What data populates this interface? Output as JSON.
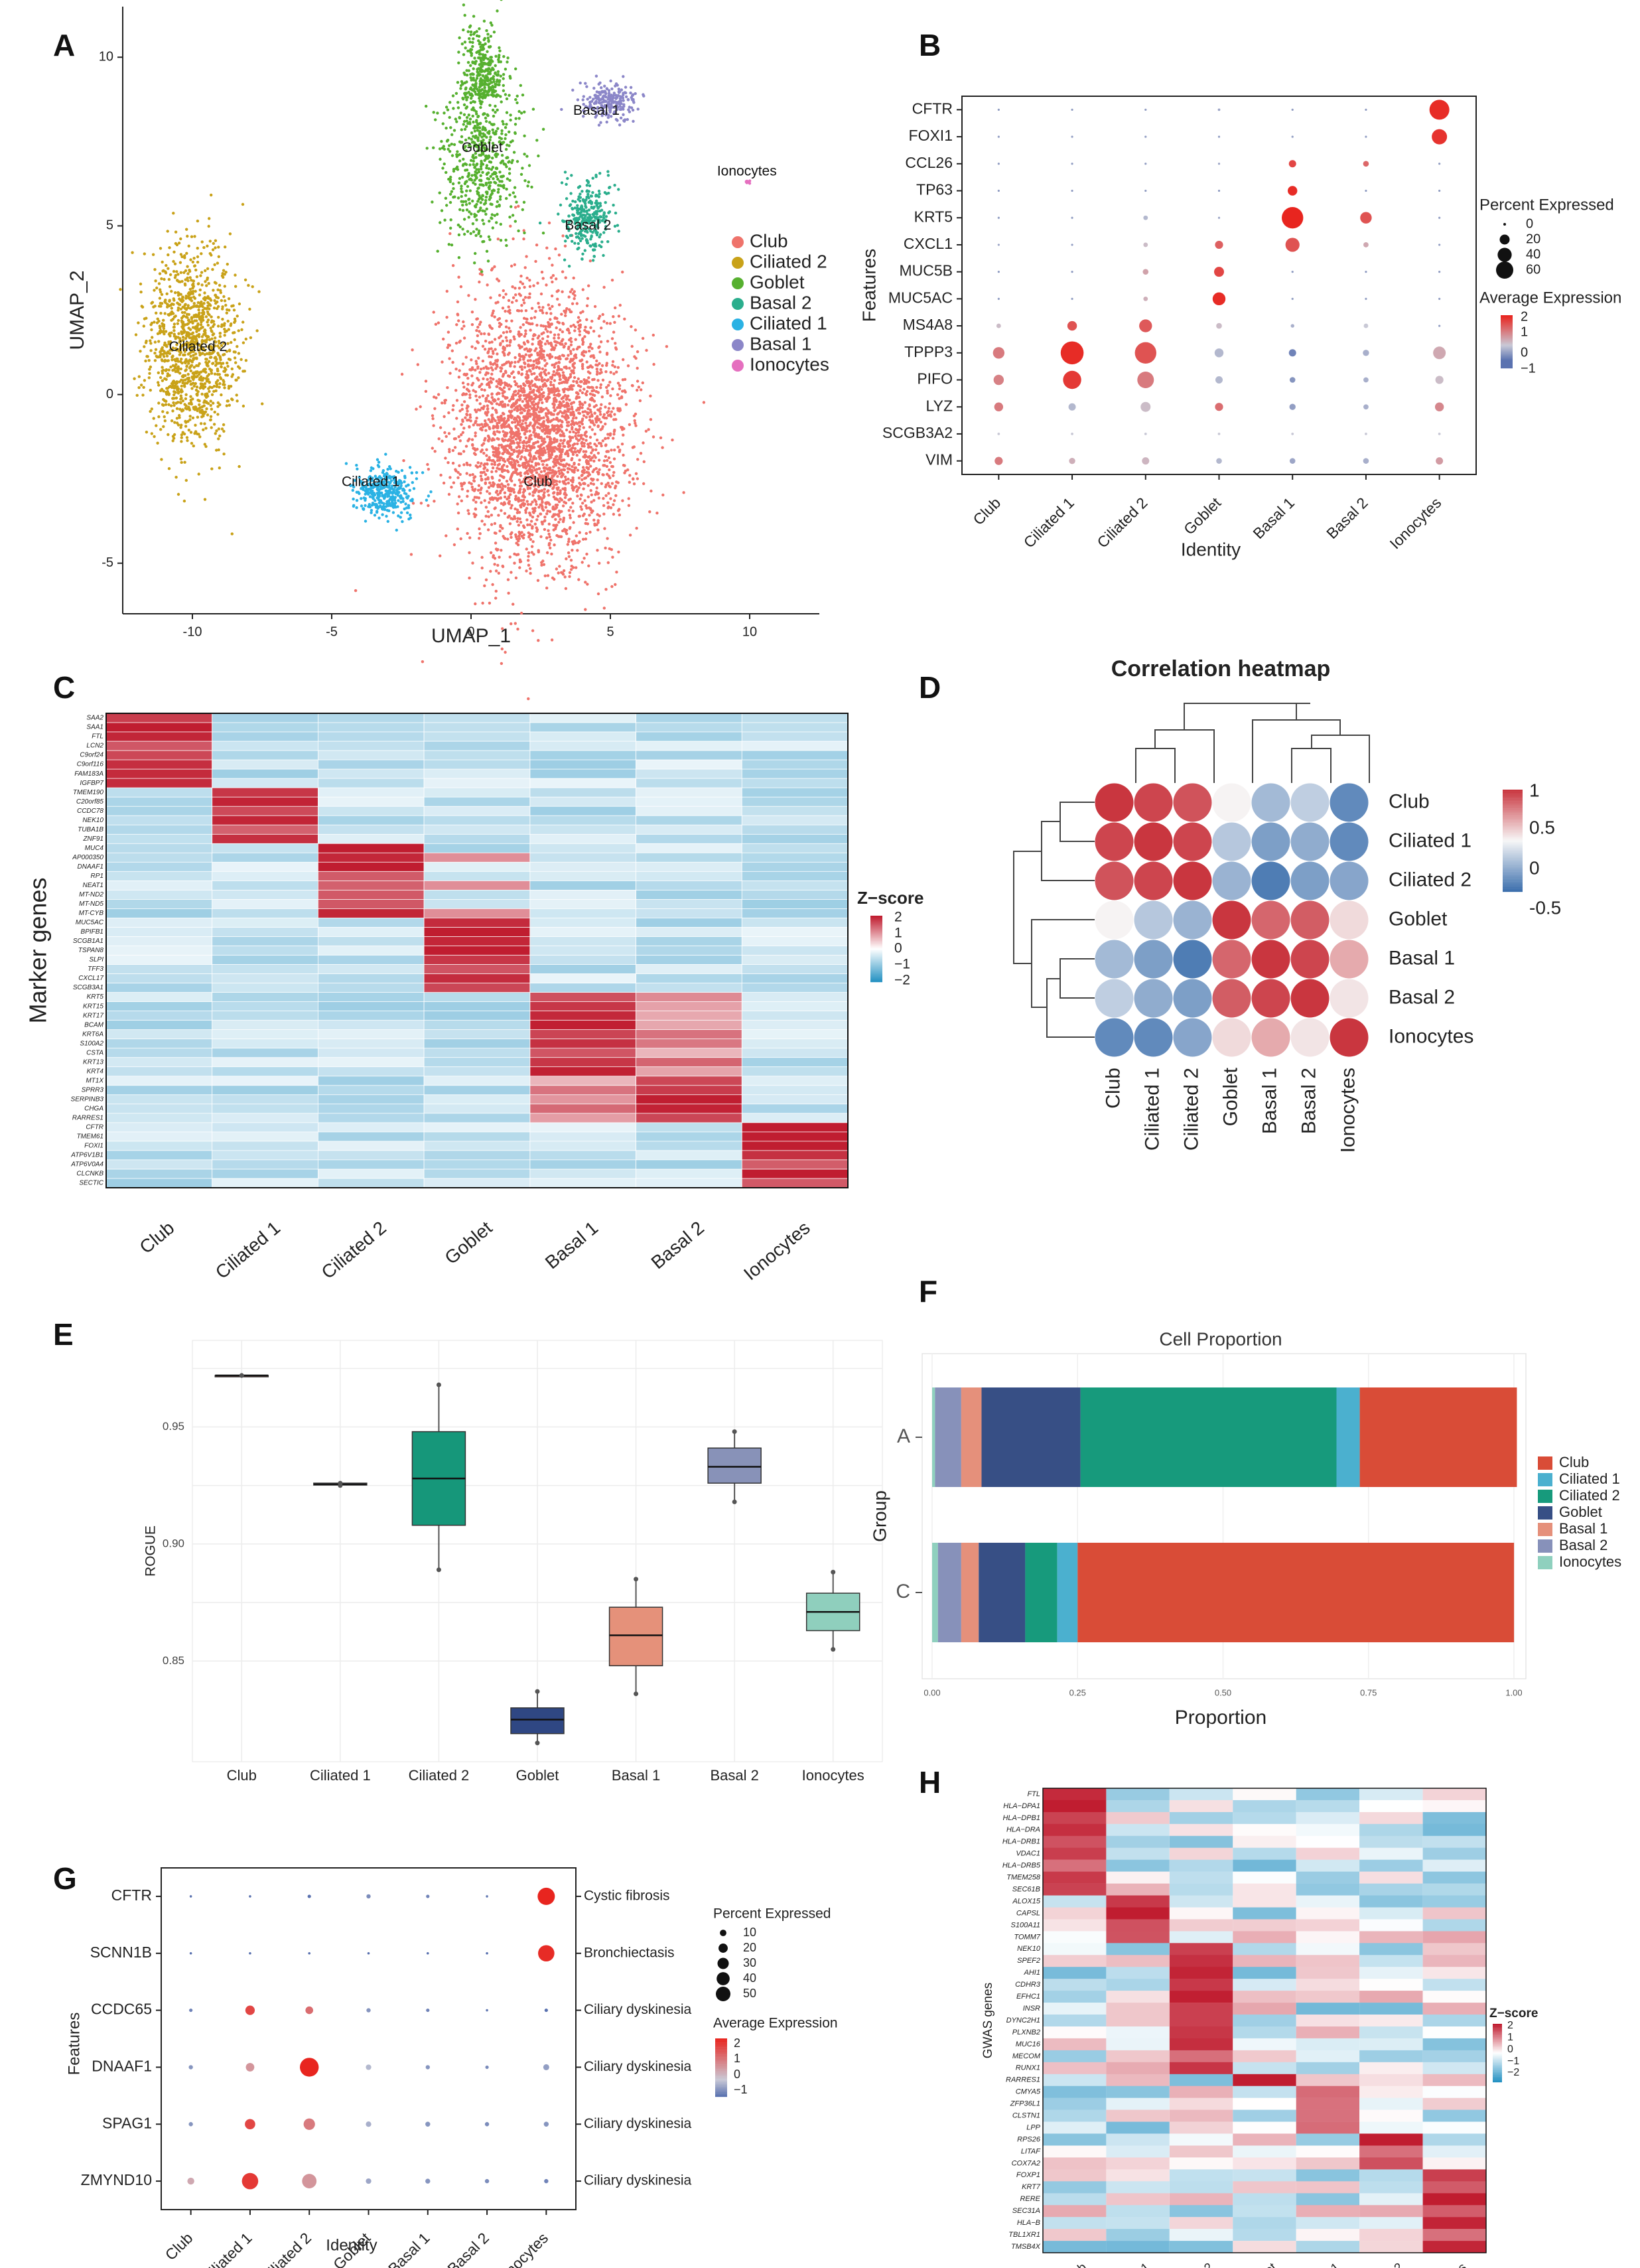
{
  "figure": {
    "panel_letters": [
      "A",
      "B",
      "C",
      "D",
      "E",
      "F",
      "G",
      "H"
    ],
    "celltypes": [
      "Club",
      "Ciliated 1",
      "Ciliated 2",
      "Goblet",
      "Basal 1",
      "Basal 2",
      "Ionocytes"
    ]
  },
  "colors": {
    "club": "#ef736b",
    "ciliated2": "#c9a219",
    "goblet": "#56b02f",
    "basal2": "#2bae8d",
    "ciliated1": "#2ab2e4",
    "basal1": "#8b86c8",
    "ionocytes": "#e56fbf",
    "heat_high": "#c01d30",
    "heat_low": "#2692c3",
    "corr_high": "#c9363f",
    "corr_low": "#3c6fad",
    "dot_high": "#e8251f",
    "dot_low": "#5a72b0"
  },
  "chart_data": [
    {
      "panel": "A",
      "type": "scatter",
      "xlabel": "UMAP_1",
      "ylabel": "UMAP_2",
      "xlim": [
        -12.5,
        12.5
      ],
      "ylim": [
        -6.5,
        11.5
      ],
      "xticks": [
        "-10",
        "-5",
        "0",
        "5",
        "10"
      ],
      "yticks": [
        "-5",
        "0",
        "5",
        "10"
      ],
      "clusters": [
        {
          "name": "Club",
          "cx": 2.4,
          "cy": -1.0,
          "rx": 3.4,
          "ry": 4.4,
          "n": 3200,
          "label_pos": [
            2.4,
            -2.6
          ]
        },
        {
          "name": "Ciliated 2",
          "cx": -10.0,
          "cy": 1.4,
          "rx": 1.8,
          "ry": 3.2,
          "n": 1200,
          "label_pos": [
            -9.8,
            1.4
          ]
        },
        {
          "name": "Goblet",
          "cx": 0.4,
          "cy": 7.0,
          "rx": 1.6,
          "ry": 2.6,
          "n": 900,
          "label_pos": [
            0.4,
            7.3
          ]
        },
        {
          "name": "Basal 2",
          "cx": 4.2,
          "cy": 5.3,
          "rx": 0.9,
          "ry": 1.2,
          "n": 300,
          "label_pos": [
            4.2,
            5.0
          ]
        },
        {
          "name": "Ciliated 1",
          "cx": -3.1,
          "cy": -2.9,
          "rx": 1.2,
          "ry": 0.8,
          "n": 350,
          "label_pos": [
            -3.6,
            -2.6
          ]
        },
        {
          "name": "Basal 1",
          "cx": 4.9,
          "cy": 8.7,
          "rx": 1.1,
          "ry": 0.6,
          "n": 220,
          "label_pos": [
            4.5,
            8.4
          ]
        },
        {
          "name": "Ionocytes",
          "cx": 9.9,
          "cy": 6.3,
          "rx": 0.15,
          "ry": 0.08,
          "n": 8,
          "label_pos": [
            9.9,
            6.6
          ]
        }
      ],
      "legend": [
        "Club",
        "Ciliated 2",
        "Goblet",
        "Basal 2",
        "Ciliated 1",
        "Basal 1",
        "Ionocytes"
      ]
    },
    {
      "panel": "B",
      "type": "dot",
      "xlabel": "Identity",
      "ylabel": "Features",
      "features": [
        "CFTR",
        "FOXI1",
        "CCL26",
        "TP63",
        "KRT5",
        "CXCL1",
        "MUC5B",
        "MUC5AC",
        "MS4A8",
        "TPPP3",
        "PIFO",
        "LYZ",
        "SCGB3A2",
        "VIM"
      ],
      "groups": [
        "Club",
        "Ciliated 1",
        "Ciliated 2",
        "Goblet",
        "Basal 1",
        "Basal 2",
        "Ionocytes"
      ],
      "pct": [
        [
          0,
          0,
          0,
          1,
          0,
          0,
          60
        ],
        [
          0,
          0,
          0,
          0,
          0,
          0,
          35
        ],
        [
          0,
          0,
          0,
          0,
          8,
          5,
          0
        ],
        [
          0,
          0,
          0,
          0,
          14,
          0,
          0
        ],
        [
          0,
          0,
          3,
          0,
          70,
          20,
          0
        ],
        [
          0,
          0,
          3,
          10,
          30,
          4,
          0
        ],
        [
          0,
          0,
          5,
          15,
          0,
          0,
          0
        ],
        [
          0,
          0,
          3,
          25,
          0,
          0,
          0
        ],
        [
          3,
          14,
          25,
          5,
          2,
          3,
          0
        ],
        [
          20,
          80,
          70,
          12,
          8,
          6,
          24
        ],
        [
          16,
          50,
          42,
          8,
          5,
          4,
          10
        ],
        [
          12,
          8,
          15,
          10,
          6,
          4,
          12
        ],
        [
          1,
          1,
          1,
          1,
          1,
          1,
          1
        ],
        [
          10,
          6,
          8,
          5,
          5,
          5,
          8
        ]
      ],
      "avg": [
        [
          -0.5,
          -0.5,
          -0.5,
          -0.4,
          -0.5,
          -0.5,
          2.4
        ],
        [
          -0.5,
          -0.5,
          -0.5,
          -0.5,
          -0.5,
          -0.5,
          2.3
        ],
        [
          -0.5,
          -0.5,
          -0.5,
          -0.4,
          2.0,
          1.5,
          -0.5
        ],
        [
          -0.5,
          -0.5,
          -0.5,
          -0.5,
          2.4,
          -0.5,
          -0.5
        ],
        [
          -0.5,
          -0.5,
          -0.2,
          -0.4,
          2.5,
          1.8,
          -0.5
        ],
        [
          -0.4,
          -0.5,
          0.2,
          1.6,
          1.8,
          0.5,
          -0.5
        ],
        [
          -0.5,
          -0.5,
          0.6,
          2.0,
          -0.5,
          -0.5,
          -0.5
        ],
        [
          -0.5,
          -0.5,
          0.4,
          2.4,
          -0.5,
          -0.5,
          -0.5
        ],
        [
          0.2,
          1.8,
          1.7,
          0.2,
          -0.3,
          0,
          -0.5
        ],
        [
          1.2,
          2.4,
          1.8,
          -0.2,
          -0.8,
          -0.3,
          0.5
        ],
        [
          1.1,
          2.2,
          1.2,
          -0.2,
          -0.6,
          -0.3,
          0.2
        ],
        [
          1.2,
          -0.2,
          0.2,
          1.4,
          -0.5,
          -0.3,
          1.0
        ],
        [
          0,
          0,
          0,
          0,
          0,
          0,
          0
        ],
        [
          1.2,
          0.4,
          0.3,
          -0.2,
          -0.4,
          -0.3,
          0.7
        ]
      ],
      "size_legend_title": "Percent Expressed",
      "size_legend": [
        "0",
        "20",
        "40",
        "60"
      ],
      "color_legend_title": "Average Expression",
      "color_legend": [
        "2",
        "1",
        "0",
        "−1"
      ]
    },
    {
      "panel": "C",
      "type": "heatmap",
      "ylabel": "Marker genes",
      "groups": [
        "Club",
        "Ciliated 1",
        "Ciliated 2",
        "Goblet",
        "Basal 1",
        "Basal 2",
        "Ionocytes"
      ],
      "genes": [
        "SAA2",
        "SAA1",
        "FTL",
        "LCN2",
        "C9orf24",
        "C9orf116",
        "FAM183A",
        "IGFBP7",
        "TMEM190",
        "C20orf85",
        "CCDC78",
        "NEK10",
        "TUBA1B",
        "ZNF91",
        "MUC4",
        "AP000350",
        "DNAAF1",
        "RP1",
        "NEAT1",
        "MT-ND2",
        "MT-ND5",
        "MT-CYB",
        "MUC5AC",
        "BPIFB1",
        "SCGB1A1",
        "TSPAN8",
        "SLPI",
        "TFF3",
        "CXCL17",
        "SCGB3A1",
        "KRT5",
        "KRT15",
        "KRT17",
        "BCAM",
        "KRT6A",
        "S100A2",
        "CSTA",
        "KRT13",
        "KRT4",
        "MT1X",
        "SPRR3",
        "SERPINB3",
        "CHGA",
        "RARRES1",
        "CFTR",
        "TMEM61",
        "FOXI1",
        "ATP6V1B1",
        "ATP6V0A4",
        "CLCNKB",
        "SECTIC"
      ],
      "row_groups": [
        0,
        0,
        0,
        0,
        0,
        0,
        0,
        0,
        1,
        1,
        1,
        1,
        1,
        1,
        2,
        2,
        2,
        2,
        2,
        2,
        2,
        2,
        3,
        3,
        3,
        3,
        3,
        3,
        3,
        3,
        4,
        4,
        4,
        4,
        4,
        4,
        4,
        4,
        4,
        5,
        5,
        5,
        5,
        5,
        6,
        6,
        6,
        6,
        6,
        6,
        6
      ],
      "legend_title": "Z−score",
      "legend_ticks": [
        "2",
        "1",
        "0",
        "−1",
        "−2"
      ]
    },
    {
      "panel": "D",
      "type": "heatmap",
      "title": "Correlation heatmap",
      "labels": [
        "Club",
        "Ciliated 1",
        "Ciliated 2",
        "Goblet",
        "Basal 1",
        "Basal 2",
        "Ionocytes"
      ],
      "matrix": [
        [
          1,
          0.92,
          0.85,
          0.02,
          -0.45,
          -0.3,
          -0.8
        ],
        [
          0.92,
          1,
          0.92,
          -0.35,
          -0.65,
          -0.55,
          -0.8
        ],
        [
          0.85,
          0.92,
          1,
          -0.5,
          -0.9,
          -0.65,
          -0.6
        ],
        [
          0.02,
          -0.35,
          -0.5,
          1,
          0.75,
          0.8,
          0.15
        ],
        [
          -0.45,
          -0.65,
          -0.9,
          0.75,
          1,
          0.92,
          0.4
        ],
        [
          -0.3,
          -0.55,
          -0.65,
          0.8,
          0.92,
          1,
          0.1
        ],
        [
          -0.8,
          -0.8,
          -0.6,
          0.15,
          0.4,
          0.1,
          1
        ]
      ],
      "legend_ticks": [
        "1",
        "0.5",
        "0",
        "-0.5"
      ]
    },
    {
      "panel": "E",
      "type": "box",
      "ylabel": "ROGUE",
      "categories": [
        "Club",
        "Ciliated 1",
        "Ciliated 2",
        "Goblet",
        "Basal 1",
        "Basal 2",
        "Ionocytes"
      ],
      "ylim": [
        0.807,
        0.987
      ],
      "yticks": [
        "0.85",
        "0.90",
        "0.95"
      ],
      "box_colors": [
        "#c0392b",
        "#2c3e6e",
        "#16977a",
        "#2f4783",
        "#e5917a",
        "#8892b8",
        "#8fcfbd"
      ],
      "stats": [
        {
          "min": 0.972,
          "q1": 0.972,
          "med": 0.972,
          "q3": 0.972,
          "max": 0.972
        },
        {
          "min": 0.925,
          "q1": 0.9252,
          "med": 0.9255,
          "q3": 0.926,
          "max": 0.926
        },
        {
          "min": 0.889,
          "q1": 0.908,
          "med": 0.928,
          "q3": 0.948,
          "max": 0.968
        },
        {
          "min": 0.815,
          "q1": 0.819,
          "med": 0.825,
          "q3": 0.83,
          "max": 0.837
        },
        {
          "min": 0.836,
          "q1": 0.848,
          "med": 0.861,
          "q3": 0.873,
          "max": 0.885
        },
        {
          "min": 0.918,
          "q1": 0.926,
          "med": 0.933,
          "q3": 0.941,
          "max": 0.948
        },
        {
          "min": 0.855,
          "q1": 0.863,
          "med": 0.871,
          "q3": 0.879,
          "max": 0.888
        }
      ]
    },
    {
      "panel": "F",
      "type": "bar",
      "title": "Cell Proportion",
      "xlabel": "Proportion",
      "ylabel": "Group",
      "groups": [
        "A",
        "C"
      ],
      "xticks": [
        "0.00",
        "0.25",
        "0.50",
        "0.75",
        "1.00"
      ],
      "stack_order": [
        "Ionocytes",
        "Basal 2",
        "Basal 1",
        "Goblet",
        "Ciliated 2",
        "Ciliated 1",
        "Club"
      ],
      "series": [
        {
          "name": "Club",
          "color": "#d94c37",
          "values": [
            0.27,
            0.75
          ]
        },
        {
          "name": "Ciliated 1",
          "color": "#4bb0cf",
          "values": [
            0.04,
            0.035
          ]
        },
        {
          "name": "Ciliated 2",
          "color": "#179a7c",
          "values": [
            0.44,
            0.055
          ]
        },
        {
          "name": "Goblet",
          "color": "#374f85",
          "values": [
            0.17,
            0.08
          ]
        },
        {
          "name": "Basal 1",
          "color": "#e5907b",
          "values": [
            0.035,
            0.03
          ]
        },
        {
          "name": "Basal 2",
          "color": "#8791ba",
          "values": [
            0.045,
            0.04
          ]
        },
        {
          "name": "Ionocytes",
          "color": "#8fd0be",
          "values": [
            0.005,
            0.01
          ]
        }
      ]
    },
    {
      "panel": "G",
      "type": "dot",
      "xlabel": "Identity",
      "ylabel": "Features",
      "features": [
        "CFTR",
        "SCNN1B",
        "CCDC65",
        "DNAAF1",
        "SPAG1",
        "ZMYND10"
      ],
      "diseases": [
        "Cystic fibrosis",
        "Bronchiectasis",
        "Ciliary dyskinesia",
        "Ciliary dyskinesia",
        "Ciliary dyskinesia",
        "Ciliary dyskinesia"
      ],
      "groups": [
        "Club",
        "Ciliated 1",
        "Ciliated 2",
        "Goblet",
        "Basal 1",
        "Basal 2",
        "Ionocytes"
      ],
      "pct": [
        [
          1,
          1,
          2,
          3,
          2,
          1,
          50
        ],
        [
          1,
          1,
          1,
          1,
          1,
          1,
          45
        ],
        [
          2,
          15,
          10,
          3,
          2,
          1,
          2
        ],
        [
          3,
          12,
          60,
          5,
          3,
          2,
          6
        ],
        [
          3,
          18,
          22,
          5,
          4,
          3,
          4
        ],
        [
          8,
          45,
          35,
          5,
          4,
          3,
          3
        ]
      ],
      "avg": [
        [
          -1,
          -1,
          -1,
          -0.7,
          -0.8,
          -0.9,
          2.5
        ],
        [
          -1,
          -1,
          -1,
          -1,
          -1,
          -1,
          2.4
        ],
        [
          -0.8,
          2.0,
          1.4,
          -0.6,
          -0.8,
          -0.9,
          -1
        ],
        [
          -0.6,
          0.8,
          2.5,
          -0.2,
          -0.6,
          -0.7,
          -0.5
        ],
        [
          -0.6,
          2.0,
          1.2,
          -0.3,
          -0.6,
          -0.7,
          -0.6
        ],
        [
          0.5,
          2.2,
          0.8,
          -0.4,
          -0.6,
          -0.7,
          -0.8
        ]
      ],
      "size_legend_title": "Percent Expressed",
      "size_legend": [
        "10",
        "20",
        "30",
        "40",
        "50"
      ],
      "color_legend_title": "Average Expression",
      "color_legend": [
        "2",
        "1",
        "0",
        "−1"
      ]
    },
    {
      "panel": "H",
      "type": "heatmap",
      "ylabel": "GWAS genes",
      "groups": [
        "Club",
        "Ciliated 1",
        "Ciliated 2",
        "Goblet",
        "Basal 1",
        "Basal 2",
        "Ionocytes"
      ],
      "genes": [
        "FTL",
        "HLA−DPA1",
        "HLA−DPB1",
        "HLA−DRA",
        "HLA−DRB1",
        "VDAC1",
        "HLA−DRB5",
        "TMEM258",
        "SEC61B",
        "ALOX15",
        "CAPSL",
        "S100A11",
        "TOMM7",
        "NEK10",
        "SPEF2",
        "AHI1",
        "CDHR3",
        "EFHC1",
        "INSR",
        "DYNC2H1",
        "PLXNB2",
        "MUC16",
        "MECOM",
        "RUNX1",
        "RARRES1",
        "CMYA5",
        "ZFP36L1",
        "CLSTN1",
        "LPP",
        "RPS26",
        "LITAF",
        "COX7A2",
        "FOXP1",
        "KRT7",
        "RERE",
        "SEC31A",
        "HLA−B",
        "TBL1XR1",
        "TMSB4X"
      ],
      "row_groups": [
        0,
        0,
        0,
        0,
        0,
        0,
        0,
        0,
        0,
        1,
        1,
        1,
        1,
        2,
        2,
        2,
        2,
        2,
        2,
        2,
        2,
        2,
        2,
        2,
        3,
        4,
        4,
        4,
        4,
        5,
        5,
        5,
        6,
        6,
        6,
        6,
        6,
        6,
        6
      ],
      "legend_title": "Z−score",
      "legend_ticks": [
        "2",
        "1",
        "0",
        "−1",
        "−2"
      ]
    }
  ]
}
